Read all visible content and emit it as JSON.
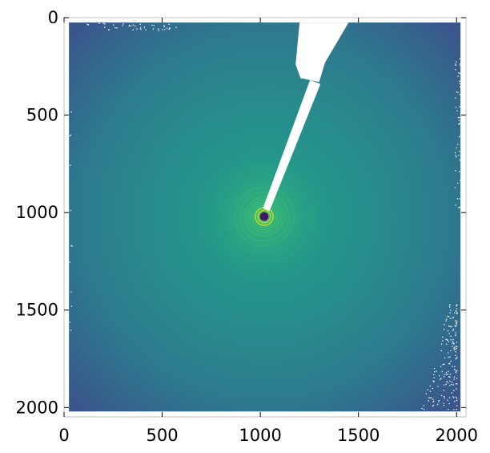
{
  "chart_data": {
    "type": "heatmap",
    "title": "",
    "xlabel": "",
    "ylabel": "",
    "xlim": [
      0,
      2048
    ],
    "ylim": [
      2048,
      0
    ],
    "y_inverted": true,
    "grid": false,
    "colormap": "viridis",
    "x_ticks": [
      {
        "value": 0,
        "label": "0"
      },
      {
        "value": 500,
        "label": "500"
      },
      {
        "value": 1000,
        "label": "1000"
      },
      {
        "value": 1500,
        "label": "1500"
      },
      {
        "value": 2000,
        "label": "2000"
      }
    ],
    "y_ticks": [
      {
        "value": 0,
        "label": "0"
      },
      {
        "value": 500,
        "label": "500"
      },
      {
        "value": 1000,
        "label": "1000"
      },
      {
        "value": 1500,
        "label": "1500"
      },
      {
        "value": 2000,
        "label": "2000"
      }
    ],
    "beam_center": {
      "x": 1020,
      "y": 1020
    },
    "detector_extent": {
      "x": [
        25,
        2020
      ],
      "y": [
        25,
        2020
      ]
    },
    "diffraction_ring_radii": [
      20,
      32,
      45,
      55,
      68,
      82,
      100,
      125,
      150
    ],
    "beamstop": {
      "tip": {
        "x": 1030,
        "y": 985
      },
      "base": {
        "x": 1280,
        "y": 330
      }
    },
    "beamstop_holder": {
      "x_range": [
        1180,
        1450
      ],
      "y_range": [
        25,
        330
      ]
    },
    "colors": {
      "background_edge": "#3d4b8a",
      "background_mid": "#2f7e8e",
      "center_glow": "#21a186",
      "ring_bright": "#b7de2a",
      "ring_mid": "#4fc26a",
      "beam_center_dot": "#44136a",
      "mask": "#ffffff"
    }
  }
}
